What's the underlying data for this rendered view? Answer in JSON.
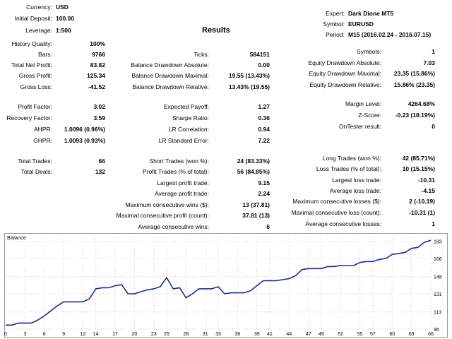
{
  "header": {
    "currency_label": "Currency:",
    "currency": "USD",
    "initial_deposit_label": "Initial Deposit:",
    "initial_deposit": "100.00",
    "leverage_label": "Leverage:",
    "leverage": "1:500",
    "expert_label": "Expert:",
    "expert": "Dark Dione MT5",
    "symbol_label": "Symbol:",
    "symbol": "EURUSD",
    "period_label": "Period:",
    "period": "M15 (2016.02.24 - 2016.07.15)",
    "results_title": "Results"
  },
  "col1": [
    {
      "label": "History Quality:",
      "value": "100%"
    },
    {
      "label": "Bars:",
      "value": "9766"
    },
    {
      "label": "Total Net Profit:",
      "value": "83.82"
    },
    {
      "label": "Gross Profit:",
      "value": "125.34"
    },
    {
      "label": "Gross Loss:",
      "value": "-41.52"
    },
    {
      "label": "Profit Factor:",
      "value": "3.02"
    },
    {
      "label": "Recovery Factor:",
      "value": "3.59"
    },
    {
      "label": "AHPR:",
      "value": "1.0096 (0.96%)"
    },
    {
      "label": "GHPR:",
      "value": "1.0093 (0.93%)"
    },
    {
      "label": "Total Trades:",
      "value": "66"
    },
    {
      "label": "Total Deals:",
      "value": "132"
    }
  ],
  "col2": [
    {
      "label": "Ticks:",
      "value": "584151"
    },
    {
      "label": "Balance Drawdown Absolute:",
      "value": "0.00"
    },
    {
      "label": "Balance Drawdown Maximal:",
      "value": "19.55 (13.43%)"
    },
    {
      "label": "Balance Drawdown Relative:",
      "value": "13.43% (19.55)"
    },
    {
      "label": "Expected Payoff:",
      "value": "1.27"
    },
    {
      "label": "Sharpe Ratio:",
      "value": "0.36"
    },
    {
      "label": "LR Correlation:",
      "value": "0.94"
    },
    {
      "label": "LR Standard Error:",
      "value": "7.22"
    },
    {
      "label": "Short Trades (won %):",
      "value": "24 (83.33%)"
    },
    {
      "label": "Profit Trades (% of total):",
      "value": "56 (84.85%)"
    },
    {
      "label": "Largest profit trade:",
      "value": "9.15"
    },
    {
      "label": "Average profit trade:",
      "value": "2.24"
    },
    {
      "label": "Maximum consecutive wins ($):",
      "value": "13 (37.81)"
    },
    {
      "label": "Maximal consecutive profit (count):",
      "value": "37.81 (13)"
    },
    {
      "label": "Average consecutive wins:",
      "value": "6"
    }
  ],
  "col3": [
    {
      "label": "Symbols:",
      "value": "1"
    },
    {
      "label": "Equity Drawdown Absolute:",
      "value": "7.03"
    },
    {
      "label": "Equity Drawdown Maximal:",
      "value": "23.35 (15.86%)"
    },
    {
      "label": "Equity Drawdown Relative:",
      "value": "15.86% (23.35)"
    },
    {
      "label": "Margin Level:",
      "value": "4264.68%"
    },
    {
      "label": "Z-Score:",
      "value": "-0.23 (18.19%)"
    },
    {
      "label": "OnTester result:",
      "value": "0"
    },
    {
      "label": "Long Trades (won %):",
      "value": "42 (85.71%)"
    },
    {
      "label": "Loss Trades (% of total):",
      "value": "10 (15.15%)"
    },
    {
      "label": "Largest loss trade:",
      "value": "-10.31"
    },
    {
      "label": "Average loss trade:",
      "value": "-4.15"
    },
    {
      "label": "Maximum consecutive losses ($):",
      "value": "2 (-10.19)"
    },
    {
      "label": "Maximal consecutive loss (count):",
      "value": "-10.31 (1)"
    },
    {
      "label": "Average consecutive losses:",
      "value": "1"
    }
  ],
  "chart_data": {
    "type": "line",
    "title": "Balance",
    "xlim": [
      0,
      66
    ],
    "ylim": [
      96,
      187
    ],
    "x_ticks": [
      0,
      3,
      6,
      9,
      12,
      14,
      17,
      20,
      23,
      25,
      28,
      31,
      33,
      36,
      39,
      41,
      44,
      47,
      49,
      52,
      55,
      57,
      60,
      63,
      66
    ],
    "y_ticks": [
      96,
      113,
      131,
      148,
      166,
      183
    ],
    "series": [
      {
        "name": "Balance",
        "color": "#1a2a9c",
        "x": [
          0,
          1,
          2,
          3,
          4,
          5,
          6,
          7,
          8,
          9,
          10,
          11,
          12,
          13,
          14,
          15,
          16,
          17,
          18,
          19,
          20,
          21,
          22,
          23,
          24,
          25,
          26,
          27,
          28,
          29,
          30,
          31,
          32,
          33,
          34,
          35,
          36,
          37,
          38,
          39,
          40,
          41,
          42,
          43,
          44,
          45,
          46,
          47,
          48,
          49,
          50,
          51,
          52,
          53,
          54,
          55,
          56,
          57,
          58,
          59,
          60,
          61,
          62,
          63,
          64,
          65,
          66
        ],
        "y": [
          100,
          100,
          102,
          102,
          102,
          105,
          109,
          114,
          119,
          123,
          123,
          123,
          123,
          126,
          136,
          137,
          137,
          139,
          140,
          131,
          131,
          133,
          135,
          136,
          138,
          147,
          136,
          137,
          127,
          131,
          136,
          136,
          136,
          138,
          131,
          132,
          132,
          132,
          134,
          139,
          144,
          144,
          144,
          145,
          146,
          149,
          155,
          156,
          156,
          156,
          158,
          158,
          159,
          159,
          159,
          162,
          163,
          163,
          165,
          166,
          170,
          171,
          172,
          176,
          177,
          182,
          184
        ]
      }
    ]
  }
}
